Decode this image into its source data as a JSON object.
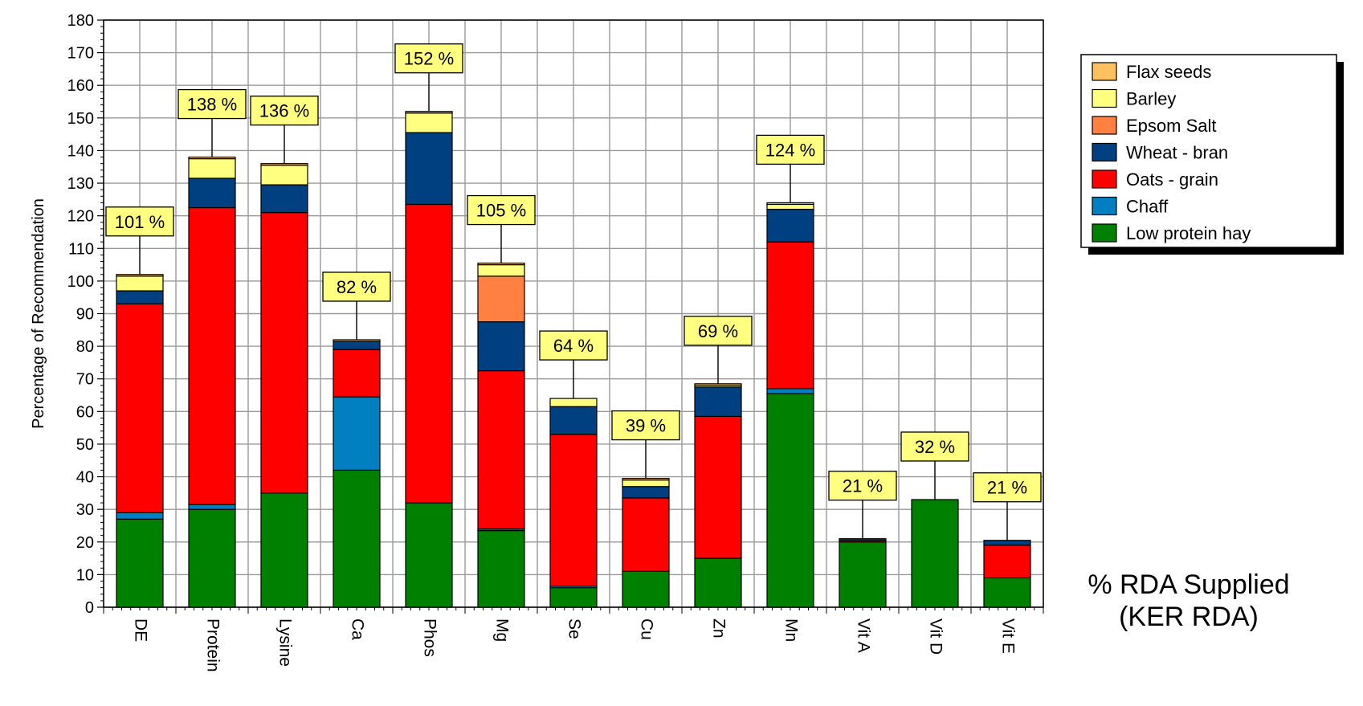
{
  "caption": {
    "line1": "% RDA Supplied",
    "line2": "(KER RDA)"
  },
  "chart_data": {
    "type": "bar",
    "stacked": true,
    "title": "% RDA Supplied (KER RDA)",
    "ylabel": "Percentage of Recommendation",
    "xlabel": "",
    "ylim": [
      0,
      180
    ],
    "ytick_step": 10,
    "grid": true,
    "legend_position": "top-right",
    "categories": [
      "DE",
      "Protein",
      "Lysine",
      "Ca",
      "Phos",
      "Mg",
      "Se",
      "Cu",
      "Zn",
      "Mn",
      "Vit A",
      "Vit D",
      "Vit E"
    ],
    "totals_labels": [
      "101 %",
      "138 %",
      "136 %",
      "82 %",
      "152 %",
      "105 %",
      "64 %",
      "39 %",
      "69 %",
      "124 %",
      "21 %",
      "32 %",
      "21 %"
    ],
    "series": [
      {
        "name": "Low protein hay",
        "color": "#008000",
        "values": [
          27,
          30,
          35,
          42,
          32,
          23.5,
          6,
          11,
          15,
          65.5,
          20,
          33,
          9
        ]
      },
      {
        "name": "Chaff",
        "color": "#0080C0",
        "values": [
          2,
          1.5,
          0,
          22.5,
          0,
          0.5,
          0.5,
          0,
          0,
          1.5,
          0,
          0,
          0
        ]
      },
      {
        "name": "Oats - grain",
        "color": "#FF0000",
        "values": [
          64,
          91,
          86,
          14.5,
          91.5,
          48.5,
          46.5,
          22.5,
          43.5,
          45,
          0.5,
          0,
          10
        ]
      },
      {
        "name": "Wheat - bran",
        "color": "#004080",
        "values": [
          4,
          9,
          8.5,
          2.5,
          22,
          15,
          8.5,
          3.5,
          9,
          10,
          0.5,
          0,
          1.5
        ]
      },
      {
        "name": "Epsom Salt",
        "color": "#FF8040",
        "values": [
          0,
          0,
          0,
          0,
          0,
          14,
          0,
          0,
          0,
          0,
          0,
          0,
          0
        ]
      },
      {
        "name": "Barley",
        "color": "#FFFF80",
        "values": [
          4.5,
          6,
          6,
          0,
          6,
          3.5,
          2.5,
          2,
          0.5,
          1.5,
          0,
          0,
          0
        ]
      },
      {
        "name": "Flax seeds",
        "color": "#FFC060",
        "values": [
          0.5,
          0.5,
          0.5,
          0.5,
          0.5,
          0.5,
          0,
          0.5,
          0.5,
          0.5,
          0,
          0,
          0
        ]
      }
    ]
  }
}
